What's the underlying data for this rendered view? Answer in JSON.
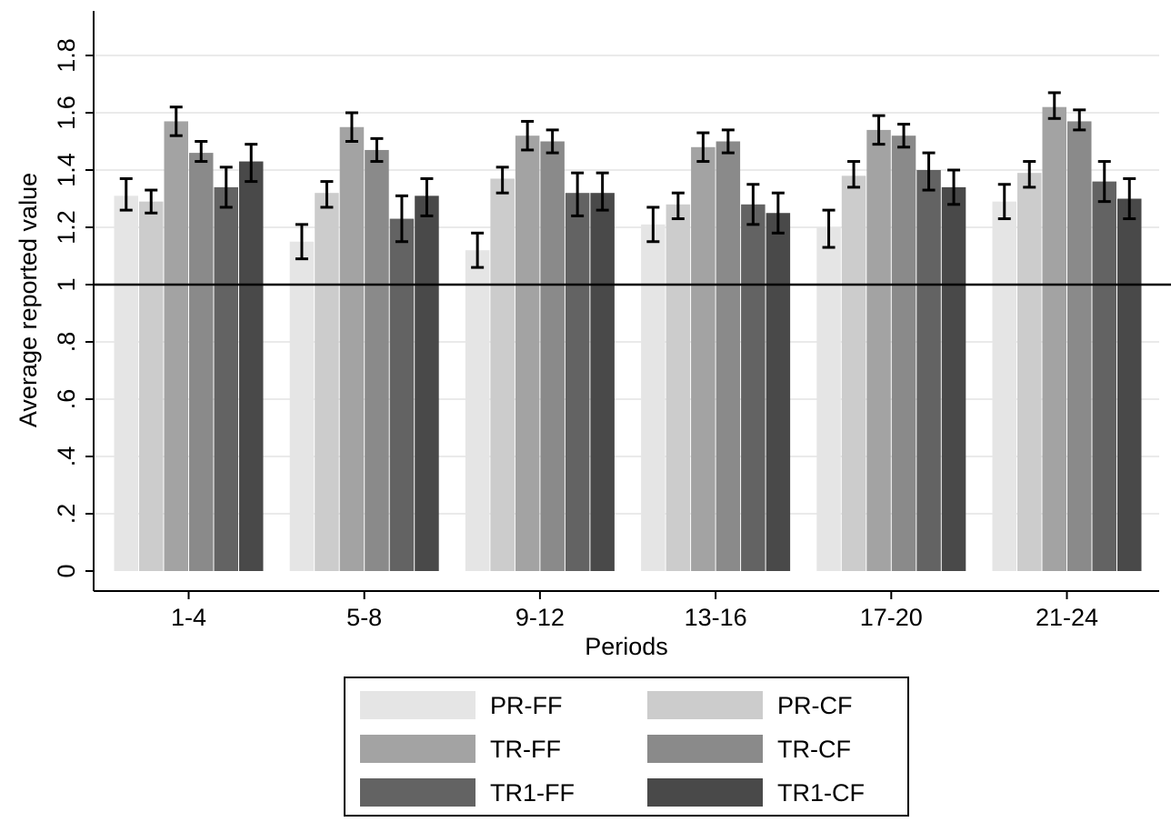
{
  "chart_data": {
    "type": "bar",
    "xlabel": "Periods",
    "ylabel": "Average reported value",
    "ylim": [
      0,
      1.9
    ],
    "yticks": [
      0,
      0.2,
      0.4,
      0.6,
      0.8,
      1,
      1.2,
      1.4,
      1.6,
      1.8
    ],
    "ytick_labels": [
      "0",
      ".2",
      ".4",
      ".6",
      ".8",
      "1",
      "1.2",
      "1.4",
      "1.6",
      "1.8"
    ],
    "reference_line": 1,
    "grid": true,
    "legend_position": "bottom",
    "categories": [
      "1-4",
      "5-8",
      "9-12",
      "13-16",
      "17-20",
      "21-24"
    ],
    "series": [
      {
        "name": "PR-FF",
        "color": "#e5e5e5",
        "values": [
          1.31,
          1.15,
          1.12,
          1.21,
          1.2,
          1.29
        ],
        "ci_low": [
          1.26,
          1.09,
          1.06,
          1.15,
          1.13,
          1.23
        ],
        "ci_high": [
          1.37,
          1.21,
          1.18,
          1.27,
          1.26,
          1.35
        ]
      },
      {
        "name": "PR-CF",
        "color": "#cccccc",
        "values": [
          1.29,
          1.32,
          1.37,
          1.28,
          1.38,
          1.39
        ],
        "ci_low": [
          1.25,
          1.27,
          1.32,
          1.23,
          1.34,
          1.34
        ],
        "ci_high": [
          1.33,
          1.36,
          1.41,
          1.32,
          1.43,
          1.43
        ]
      },
      {
        "name": "TR-FF",
        "color": "#a3a3a3",
        "values": [
          1.57,
          1.55,
          1.52,
          1.48,
          1.54,
          1.62
        ],
        "ci_low": [
          1.52,
          1.5,
          1.47,
          1.43,
          1.49,
          1.58
        ],
        "ci_high": [
          1.62,
          1.6,
          1.57,
          1.53,
          1.59,
          1.67
        ]
      },
      {
        "name": "TR-CF",
        "color": "#8a8a8a",
        "values": [
          1.46,
          1.47,
          1.5,
          1.5,
          1.52,
          1.57
        ],
        "ci_low": [
          1.43,
          1.43,
          1.46,
          1.46,
          1.48,
          1.54
        ],
        "ci_high": [
          1.5,
          1.51,
          1.54,
          1.54,
          1.56,
          1.61
        ]
      },
      {
        "name": "TR1-FF",
        "color": "#636363",
        "values": [
          1.34,
          1.23,
          1.32,
          1.28,
          1.4,
          1.36
        ],
        "ci_low": [
          1.27,
          1.15,
          1.24,
          1.21,
          1.33,
          1.29
        ],
        "ci_high": [
          1.41,
          1.31,
          1.39,
          1.35,
          1.46,
          1.43
        ]
      },
      {
        "name": "TR1-CF",
        "color": "#494949",
        "values": [
          1.43,
          1.31,
          1.32,
          1.25,
          1.34,
          1.3
        ],
        "ci_low": [
          1.36,
          1.24,
          1.26,
          1.18,
          1.28,
          1.23
        ],
        "ci_high": [
          1.49,
          1.37,
          1.39,
          1.32,
          1.4,
          1.37
        ]
      }
    ]
  }
}
